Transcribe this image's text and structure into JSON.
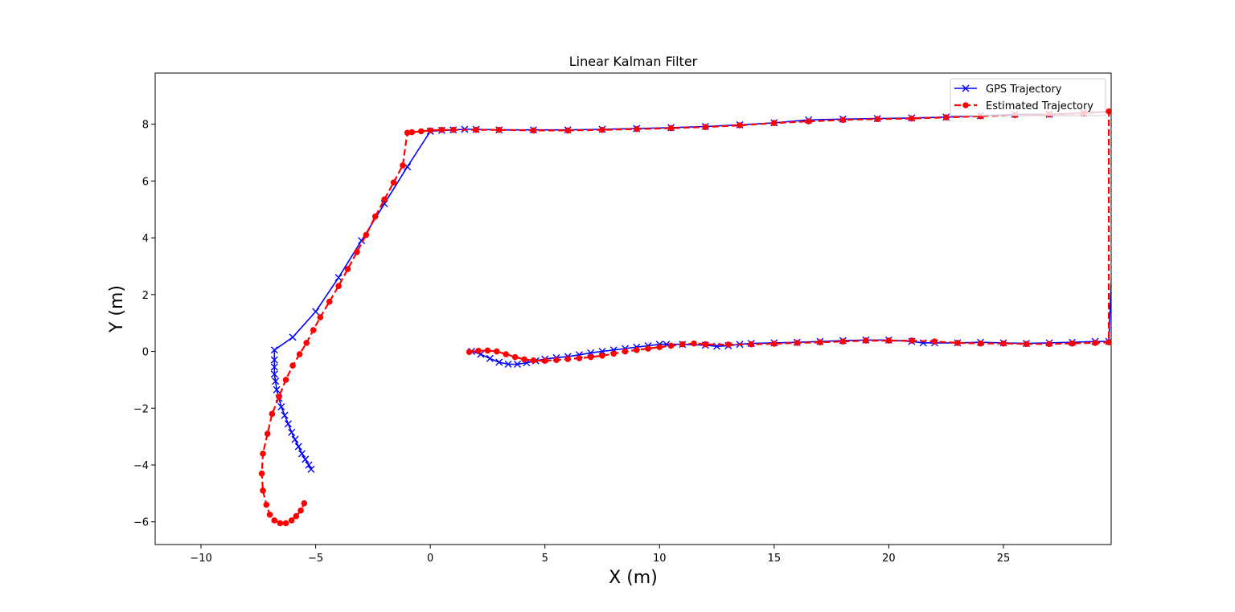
{
  "chart_data": {
    "type": "line",
    "title": "Linear Kalman Filter",
    "xlabel": "X (m)",
    "ylabel": "Y (m)",
    "xlim": [
      -12,
      29.7
    ],
    "ylim": [
      -6.8,
      9.8
    ],
    "xticks": [
      -10,
      -5,
      0,
      5,
      10,
      15,
      20,
      25
    ],
    "xtick_labels": [
      "−10",
      "−5",
      "0",
      "5",
      "10",
      "15",
      "20",
      "25"
    ],
    "yticks": [
      -6,
      -4,
      -2,
      0,
      2,
      4,
      6,
      8
    ],
    "ytick_labels": [
      "−6",
      "−4",
      "−2",
      "0",
      "2",
      "4",
      "6",
      "8"
    ],
    "grid": false,
    "legend_position": "top-right",
    "series": [
      {
        "name": "GPS Trajectory",
        "color": "#0000ff",
        "line_style": "solid",
        "marker": "x",
        "x": [
          1.8,
          2.2,
          2.6,
          3.0,
          3.4,
          3.8,
          4.2,
          4.6,
          5.0,
          5.5,
          6.0,
          6.5,
          7.0,
          7.5,
          8.0,
          8.5,
          9.0,
          9.5,
          10.0,
          10.3,
          11.0,
          12.0,
          12.5,
          13.0,
          13.5,
          14.0,
          15.0,
          16.0,
          17.0,
          18.0,
          19.0,
          20.0,
          21.0,
          21.5,
          22.0,
          23.0,
          24.0,
          25.0,
          26.0,
          27.0,
          28.0,
          29.0,
          29.6,
          30.0,
          28.5,
          27.0,
          25.5,
          24.0,
          22.5,
          21.0,
          19.5,
          18.0,
          16.5,
          15.0,
          13.5,
          12.0,
          10.5,
          9.0,
          7.5,
          6.0,
          4.5,
          3.0,
          2.0,
          1.5,
          1.0,
          0.5,
          0.0,
          -1.0,
          -2.0,
          -3.0,
          -4.0,
          -5.0,
          -6.0,
          -6.8,
          -6.8,
          -6.8,
          -6.8,
          -6.75,
          -6.7,
          -6.6,
          -6.5,
          -6.35,
          -6.2,
          -6.05,
          -5.9,
          -5.75,
          -5.6,
          -5.45,
          -5.3,
          -5.2
        ],
        "y": [
          0.0,
          -0.1,
          -0.25,
          -0.38,
          -0.45,
          -0.45,
          -0.4,
          -0.33,
          -0.27,
          -0.22,
          -0.18,
          -0.12,
          -0.05,
          0.0,
          0.05,
          0.1,
          0.15,
          0.2,
          0.25,
          0.25,
          0.25,
          0.22,
          0.18,
          0.2,
          0.25,
          0.28,
          0.3,
          0.32,
          0.35,
          0.38,
          0.4,
          0.4,
          0.35,
          0.3,
          0.3,
          0.3,
          0.32,
          0.3,
          0.28,
          0.3,
          0.32,
          0.35,
          0.35,
          8.45,
          8.4,
          8.35,
          8.35,
          8.3,
          8.25,
          8.22,
          8.2,
          8.18,
          8.15,
          8.05,
          7.98,
          7.92,
          7.88,
          7.85,
          7.82,
          7.8,
          7.8,
          7.8,
          7.82,
          7.82,
          7.8,
          7.78,
          7.75,
          6.5,
          5.2,
          3.9,
          2.6,
          1.4,
          0.5,
          0.05,
          -0.3,
          -0.55,
          -0.8,
          -1.05,
          -1.35,
          -1.65,
          -1.95,
          -2.25,
          -2.55,
          -2.85,
          -3.1,
          -3.35,
          -3.6,
          -3.8,
          -4.0,
          -4.15
        ]
      },
      {
        "name": "Estimated Trajectory",
        "color": "#ff0000",
        "line_style": "dashed",
        "marker": "o",
        "x": [
          1.7,
          2.1,
          2.5,
          2.9,
          3.3,
          3.7,
          4.1,
          4.5,
          5.0,
          5.5,
          6.0,
          6.5,
          7.0,
          7.5,
          8.0,
          8.5,
          9.0,
          9.5,
          10.0,
          10.5,
          11.0,
          11.5,
          12.0,
          13.0,
          14.0,
          15.0,
          16.0,
          17.0,
          18.0,
          19.0,
          20.0,
          21.0,
          22.0,
          23.0,
          24.0,
          25.0,
          26.0,
          27.0,
          28.0,
          29.0,
          29.6,
          29.6,
          28.5,
          27.0,
          25.5,
          24.0,
          22.5,
          21.0,
          19.5,
          18.0,
          16.5,
          15.0,
          13.5,
          12.0,
          10.5,
          9.0,
          7.5,
          6.0,
          4.5,
          3.0,
          2.0,
          1.0,
          0.5,
          0.0,
          -0.4,
          -0.8,
          -1.0,
          -1.2,
          -1.6,
          -2.0,
          -2.4,
          -2.8,
          -3.2,
          -3.6,
          -4.0,
          -4.4,
          -4.8,
          -5.1,
          -5.4,
          -5.7,
          -6.0,
          -6.3,
          -6.6,
          -6.9,
          -7.1,
          -7.3,
          -7.35,
          -7.3,
          -7.15,
          -7.0,
          -6.8,
          -6.55,
          -6.3,
          -6.05,
          -5.85,
          -5.65,
          -5.5
        ],
        "y": [
          -0.02,
          0.02,
          0.03,
          0.0,
          -0.1,
          -0.2,
          -0.28,
          -0.32,
          -0.33,
          -0.3,
          -0.27,
          -0.24,
          -0.2,
          -0.15,
          -0.08,
          0.0,
          0.05,
          0.1,
          0.15,
          0.2,
          0.25,
          0.28,
          0.25,
          0.24,
          0.25,
          0.27,
          0.3,
          0.32,
          0.35,
          0.38,
          0.38,
          0.38,
          0.35,
          0.3,
          0.28,
          0.28,
          0.26,
          0.26,
          0.28,
          0.3,
          0.32,
          8.45,
          8.38,
          8.34,
          8.32,
          8.28,
          8.24,
          8.2,
          8.18,
          8.15,
          8.1,
          8.04,
          7.96,
          7.9,
          7.86,
          7.83,
          7.8,
          7.78,
          7.78,
          7.8,
          7.8,
          7.8,
          7.8,
          7.78,
          7.75,
          7.72,
          7.7,
          6.55,
          5.95,
          5.35,
          4.75,
          4.1,
          3.5,
          2.9,
          2.3,
          1.75,
          1.2,
          0.75,
          0.3,
          -0.1,
          -0.5,
          -1.0,
          -1.6,
          -2.2,
          -2.9,
          -3.6,
          -4.3,
          -4.9,
          -5.4,
          -5.75,
          -5.95,
          -6.05,
          -6.05,
          -5.95,
          -5.8,
          -5.6,
          -5.35
        ]
      }
    ]
  }
}
